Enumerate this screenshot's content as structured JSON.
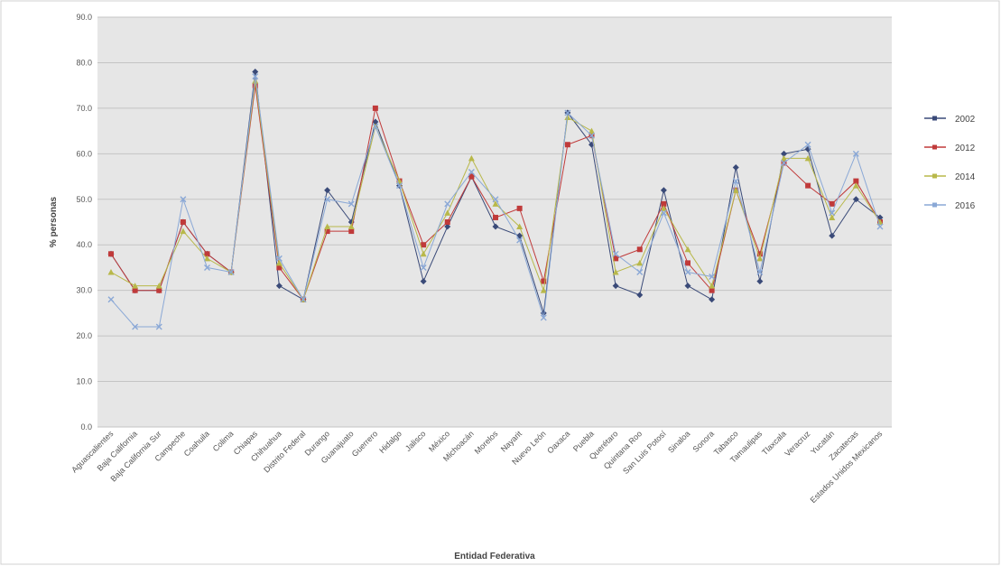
{
  "chart_data": {
    "type": "line",
    "xlabel": "Entidad Federativa",
    "ylabel": "% personas",
    "ylim": [
      0,
      90
    ],
    "yticks": [
      "0.0",
      "10.0",
      "20.0",
      "30.0",
      "40.0",
      "50.0",
      "60.0",
      "70.0",
      "80.0",
      "90.0"
    ],
    "grid": true,
    "legend_position": "right",
    "categories": [
      "Aguascalientes",
      "Baja California",
      "Baja California Sur",
      "Campeche",
      "Coahuila",
      "Colima",
      "Chiapas",
      "Chihuahua",
      "Distrito Federal",
      "Durango",
      "Guanajuato",
      "Guerrero",
      "Hidalgo",
      "Jalisco",
      "México",
      "Michoacán",
      "Morelos",
      "Nayarit",
      "Nuevo León",
      "Oaxaca",
      "Puebla",
      "Querétaro",
      "Quintana Roo",
      "San Luis Potosí",
      "Sinaloa",
      "Sonora",
      "Tabasco",
      "Tamaulipas",
      "Tlaxcala",
      "Veracruz",
      "Yucatán",
      "Zacatecas",
      "Estados Unidos Mexicanos"
    ],
    "series": [
      {
        "name": "2002",
        "color": "#3a4a78",
        "values": [
          38.0,
          30.0,
          30.0,
          45.0,
          38.0,
          34.0,
          78.0,
          31.0,
          28.0,
          52.0,
          45.0,
          67.0,
          53.0,
          32.0,
          44.0,
          55.0,
          44.0,
          42.0,
          25.0,
          69.0,
          62.0,
          31.0,
          29.0,
          52.0,
          31.0,
          28.0,
          57.0,
          32.0,
          60.0,
          61.0,
          42.0,
          50.0,
          46.0
        ]
      },
      {
        "name": "2012",
        "color": "#c03a3a",
        "values": [
          38.0,
          30.0,
          30.0,
          45.0,
          38.0,
          34.0,
          75.0,
          35.0,
          28.0,
          43.0,
          43.0,
          70.0,
          54.0,
          40.0,
          45.0,
          55.0,
          46.0,
          48.0,
          32.0,
          62.0,
          64.0,
          37.0,
          39.0,
          49.0,
          36.0,
          30.0,
          52.0,
          38.0,
          58.0,
          53.0,
          49.0,
          54.0,
          45.0
        ]
      },
      {
        "name": "2014",
        "color": "#b8b84a",
        "values": [
          34.0,
          31.0,
          31.0,
          43.0,
          37.0,
          34.0,
          76.0,
          36.0,
          28.0,
          44.0,
          44.0,
          66.0,
          54.0,
          38.0,
          47.0,
          59.0,
          49.0,
          44.0,
          30.0,
          68.0,
          65.0,
          34.0,
          36.0,
          48.0,
          39.0,
          31.0,
          52.0,
          37.0,
          59.0,
          59.0,
          46.0,
          53.0,
          45.0
        ]
      },
      {
        "name": "2016",
        "color": "#8aa8d6",
        "values": [
          28.0,
          22.0,
          22.0,
          50.0,
          35.0,
          34.0,
          77.0,
          37.0,
          28.0,
          50.0,
          49.0,
          66.0,
          53.0,
          35.0,
          49.0,
          56.0,
          50.0,
          41.0,
          24.0,
          69.0,
          64.0,
          38.0,
          34.0,
          47.0,
          34.0,
          33.0,
          54.0,
          34.0,
          58.0,
          62.0,
          47.0,
          60.0,
          44.0
        ]
      }
    ]
  }
}
